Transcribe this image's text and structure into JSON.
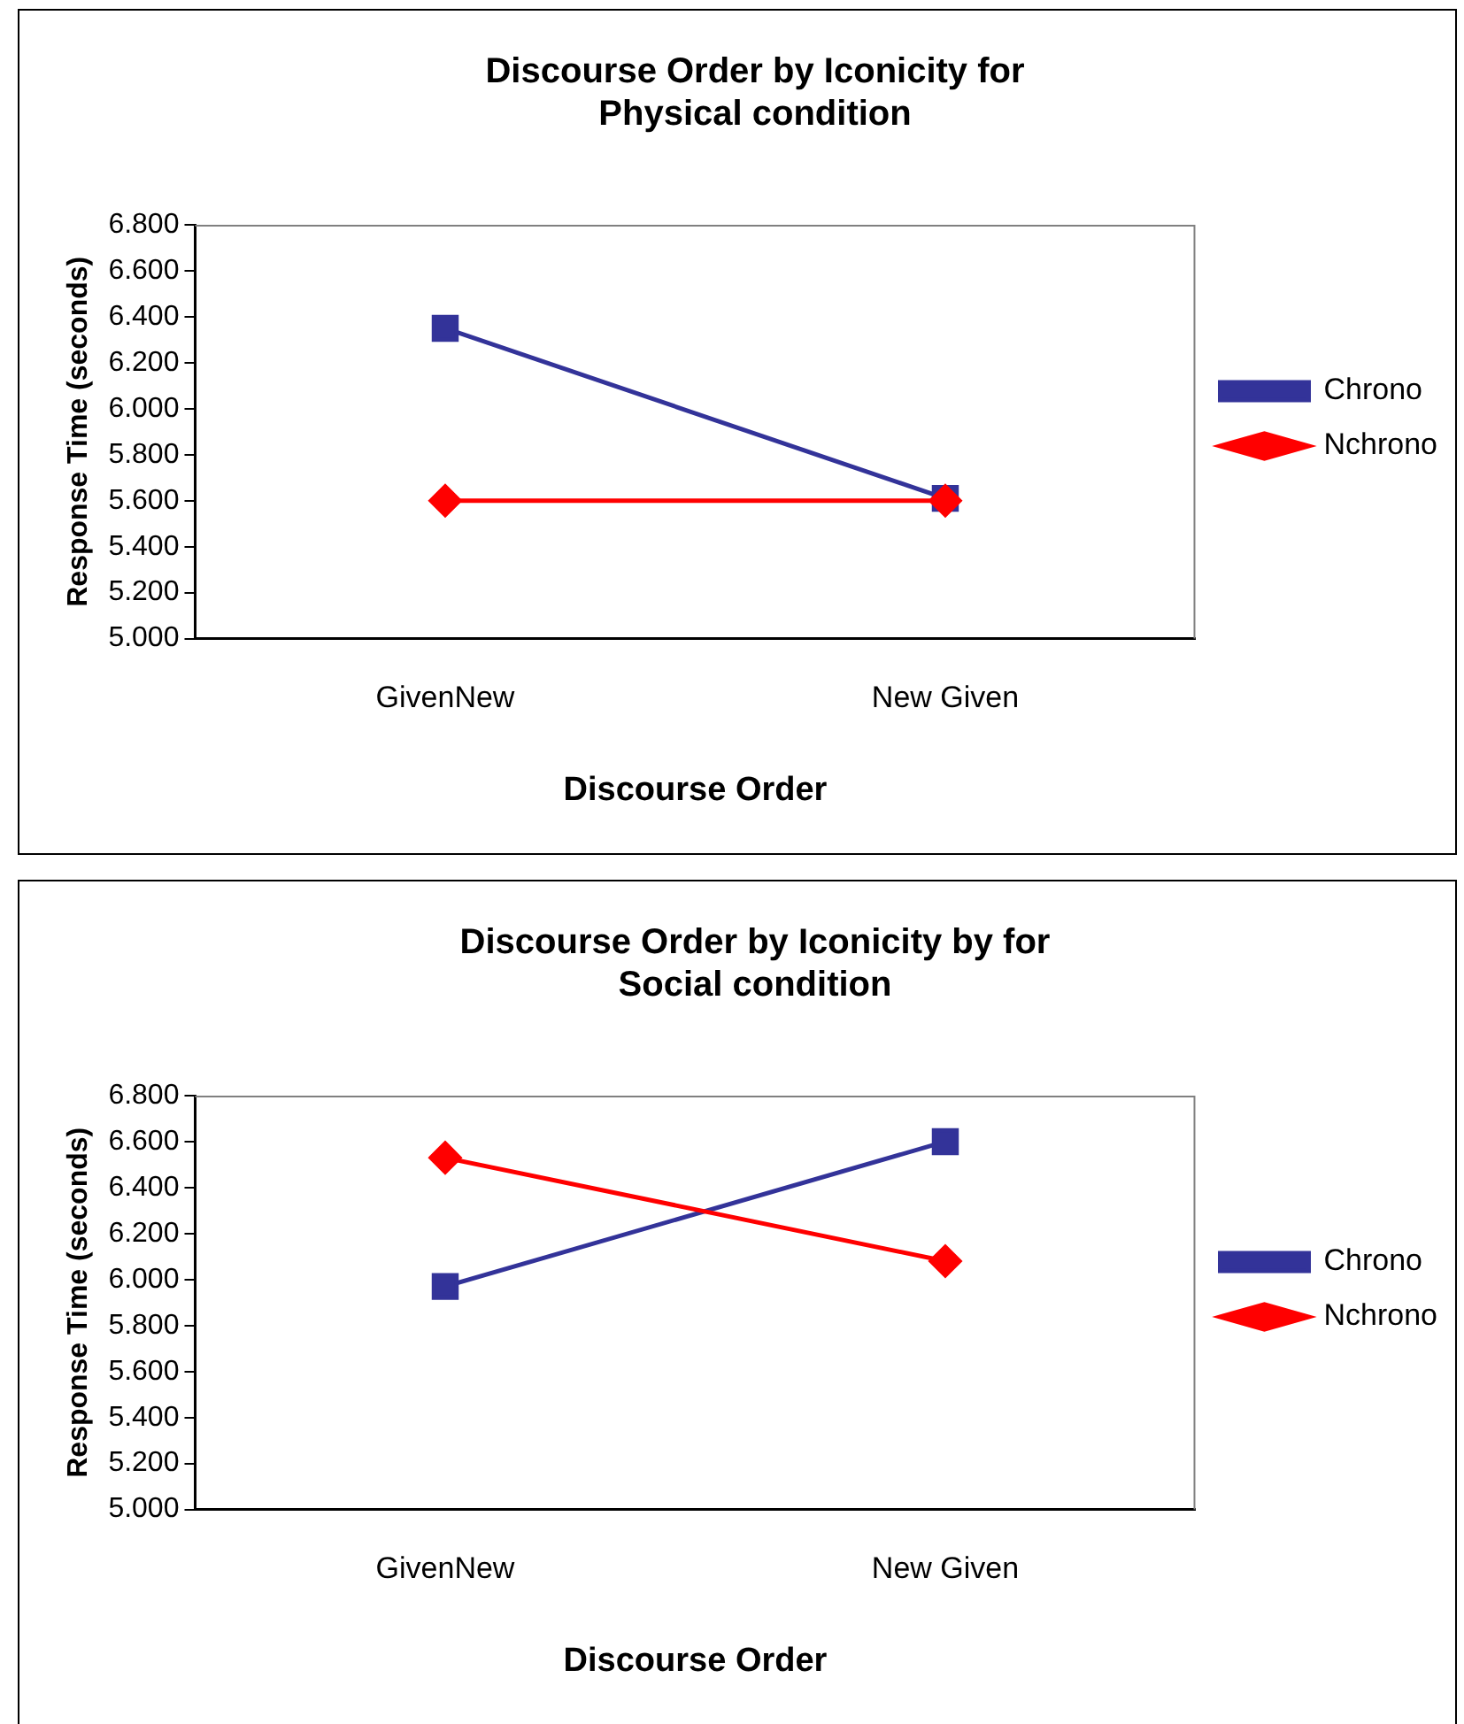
{
  "chart_data": [
    {
      "type": "line",
      "title": "Discourse Order by Iconicity for\nPhysical condition",
      "xlabel": "Discourse Order",
      "ylabel": "Response Time (seconds)",
      "categories": [
        "GivenNew",
        "New Given"
      ],
      "series": [
        {
          "name": "Chrono",
          "color": "#333399",
          "values": [
            6.35,
            5.61
          ],
          "marker": "square"
        },
        {
          "name": "Nchrono",
          "color": "#ff0000",
          "values": [
            5.6,
            5.6
          ],
          "marker": "diamond"
        }
      ],
      "ylim": [
        5,
        6.8
      ],
      "yticks": [
        {
          "value": 5,
          "label": "5.000"
        },
        {
          "value": 5.2,
          "label": "5.200"
        },
        {
          "value": 5.4,
          "label": "5.400"
        },
        {
          "value": 5.6,
          "label": "5.600"
        },
        {
          "value": 5.8,
          "label": "5.800"
        },
        {
          "value": 6,
          "label": "6.000"
        },
        {
          "value": 6.2,
          "label": "6.200"
        },
        {
          "value": 6.4,
          "label": "6.400"
        },
        {
          "value": 6.6,
          "label": "6.600"
        },
        {
          "value": 6.8,
          "label": "6.800"
        }
      ],
      "grid": false,
      "legend": "right"
    },
    {
      "type": "line",
      "title": "Discourse Order by Iconicity by for\nSocial condition",
      "xlabel": "Discourse Order",
      "ylabel": "Response Time (seconds)",
      "categories": [
        "GivenNew",
        "New Given"
      ],
      "series": [
        {
          "name": "Chrono",
          "color": "#333399",
          "values": [
            5.97,
            6.6
          ],
          "marker": "square"
        },
        {
          "name": "Nchrono",
          "color": "#ff0000",
          "values": [
            6.53,
            6.08
          ],
          "marker": "diamond"
        }
      ],
      "ylim": [
        5,
        6.8
      ],
      "yticks": [
        {
          "value": 5,
          "label": "5.000"
        },
        {
          "value": 5.2,
          "label": "5.200"
        },
        {
          "value": 5.4,
          "label": "5.400"
        },
        {
          "value": 5.6,
          "label": "5.600"
        },
        {
          "value": 5.8,
          "label": "5.800"
        },
        {
          "value": 6,
          "label": "6.000"
        },
        {
          "value": 6.2,
          "label": "6.200"
        },
        {
          "value": 6.4,
          "label": "6.400"
        },
        {
          "value": 6.6,
          "label": "6.600"
        },
        {
          "value": 6.8,
          "label": "6.800"
        }
      ],
      "grid": false,
      "legend": "right"
    }
  ]
}
